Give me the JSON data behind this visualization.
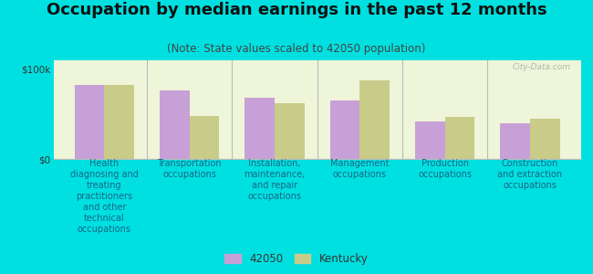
{
  "title": "Occupation by median earnings in the past 12 months",
  "subtitle": "(Note: State values scaled to 42050 population)",
  "categories": [
    "Health\ndiagnosing and\ntreating\npractitioners\nand other\ntechnical\noccupations",
    "Transportation\noccupations",
    "Installation,\nmaintenance,\nand repair\noccupations",
    "Management\noccupations",
    "Production\noccupations",
    "Construction\nand extraction\noccupations"
  ],
  "values_42050": [
    82000,
    76000,
    68000,
    65000,
    42000,
    40000
  ],
  "values_kentucky": [
    83000,
    48000,
    62000,
    88000,
    47000,
    45000
  ],
  "color_42050": "#c8a0d8",
  "color_kentucky": "#c8cc88",
  "bar_width": 0.35,
  "ylim": [
    0,
    110000
  ],
  "yticks": [
    0,
    100000
  ],
  "ytick_labels": [
    "$0",
    "$100k"
  ],
  "background_color": "#eef5d8",
  "outer_background": "#00e0e0",
  "legend_label_42050": "42050",
  "legend_label_kentucky": "Kentucky",
  "title_fontsize": 13,
  "subtitle_fontsize": 8.5,
  "axis_label_fontsize": 7,
  "watermark": "City-Data.com"
}
